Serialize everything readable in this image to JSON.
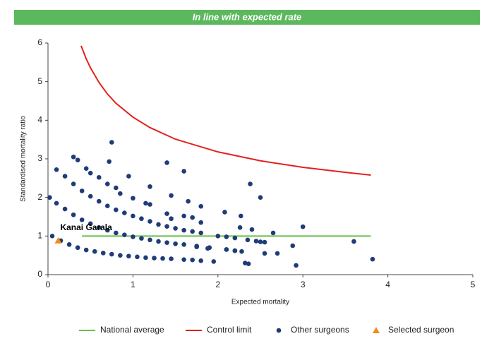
{
  "chart_data": {
    "type": "scatter",
    "title": "In line with expected rate",
    "title_color": "#5cb85c",
    "xlabel": "Expected mortality",
    "ylabel": "Standardised mortality ratio",
    "xlim": [
      0,
      5
    ],
    "ylim": [
      0,
      6
    ],
    "xticks": [
      0,
      1,
      2,
      3,
      4,
      5
    ],
    "yticks": [
      0,
      1,
      2,
      3,
      4,
      5,
      6
    ],
    "grid": false,
    "legend": "bottom",
    "series": [
      {
        "name": "National average",
        "type": "line",
        "color": "#6abf4b",
        "x": [
          0.4,
          3.8
        ],
        "values": [
          1,
          1
        ]
      },
      {
        "name": "Control limit",
        "type": "line",
        "color": "#e3211c",
        "x": [
          0.39,
          0.45,
          0.5,
          0.6,
          0.7,
          0.8,
          1.0,
          1.2,
          1.5,
          2,
          2.5,
          3,
          3.5,
          3.8
        ],
        "values": [
          5.93,
          5.59,
          5.36,
          4.98,
          4.68,
          4.44,
          4.08,
          3.81,
          3.51,
          3.18,
          2.95,
          2.78,
          2.65,
          2.58
        ]
      },
      {
        "name": "Other surgeons",
        "type": "scatter",
        "color": "#1f3c78",
        "x": [
          0.05,
          0.15,
          0.25,
          0.35,
          0.45,
          0.55,
          0.65,
          0.75,
          0.85,
          0.95,
          1.05,
          1.15,
          1.25,
          1.35,
          1.45,
          1.6,
          1.7,
          1.8,
          1.95,
          0.02,
          0.1,
          0.2,
          0.3,
          0.4,
          0.5,
          0.6,
          0.7,
          0.8,
          0.9,
          1.0,
          1.1,
          1.2,
          1.3,
          1.4,
          1.5,
          1.6,
          1.75,
          1.9,
          2.1,
          2.2,
          0.1,
          0.2,
          0.3,
          0.4,
          0.5,
          0.6,
          0.7,
          0.8,
          0.9,
          1.0,
          1.1,
          1.2,
          1.3,
          1.4,
          1.5,
          1.6,
          1.7,
          1.8,
          2.0,
          2.1,
          2.2,
          2.35,
          2.45,
          2.55,
          0.45,
          0.6,
          0.7,
          0.8,
          0.85,
          1.0,
          1.15,
          1.2,
          1.4,
          1.45,
          1.6,
          1.7,
          1.8,
          0.3,
          0.35,
          0.5,
          0.72,
          0.75,
          0.95,
          1.2,
          1.4,
          1.45,
          1.6,
          1.65,
          1.8,
          2.08,
          2.27,
          2.38,
          2.5,
          2.65,
          3.0,
          2.4,
          2.26,
          2.88,
          2.92,
          3.6,
          3.82,
          2.32,
          2.36,
          2.55,
          2.7,
          2.1,
          2.2,
          2.28,
          2.5,
          1.75,
          1.88
        ],
        "values": [
          1.0,
          0.88,
          0.78,
          0.7,
          0.64,
          0.6,
          0.56,
          0.53,
          0.5,
          0.48,
          0.46,
          0.44,
          0.43,
          0.42,
          0.41,
          0.39,
          0.38,
          0.36,
          0.34,
          2.0,
          1.85,
          1.7,
          1.55,
          1.42,
          1.32,
          1.22,
          1.15,
          1.08,
          1.03,
          0.98,
          0.94,
          0.9,
          0.86,
          0.83,
          0.8,
          0.78,
          0.74,
          0.7,
          0.65,
          0.62,
          2.72,
          2.55,
          2.35,
          2.17,
          2.03,
          1.9,
          1.78,
          1.68,
          1.6,
          1.52,
          1.45,
          1.38,
          1.3,
          1.25,
          1.2,
          1.15,
          1.12,
          1.08,
          1.0,
          0.98,
          0.95,
          0.9,
          0.87,
          0.84,
          2.75,
          2.52,
          2.35,
          2.25,
          2.1,
          1.98,
          1.85,
          1.82,
          1.58,
          1.45,
          1.52,
          1.48,
          1.35,
          3.05,
          2.97,
          2.63,
          2.93,
          3.43,
          2.55,
          2.28,
          2.9,
          2.05,
          2.68,
          1.9,
          1.77,
          1.62,
          1.52,
          2.35,
          2.0,
          1.08,
          1.24,
          1.17,
          1.22,
          0.75,
          0.24,
          0.86,
          0.4,
          0.3,
          0.28,
          0.55,
          0.55,
          0.65,
          0.62,
          0.6,
          0.85,
          0.72,
          0.68
        ]
      },
      {
        "name": "Selected surgeon",
        "type": "scatter",
        "marker": "triangle",
        "color": "#f28c1e",
        "x": [
          0.12
        ],
        "values": [
          0.88
        ],
        "point_labels": [
          "Kanai Garala"
        ]
      }
    ]
  }
}
